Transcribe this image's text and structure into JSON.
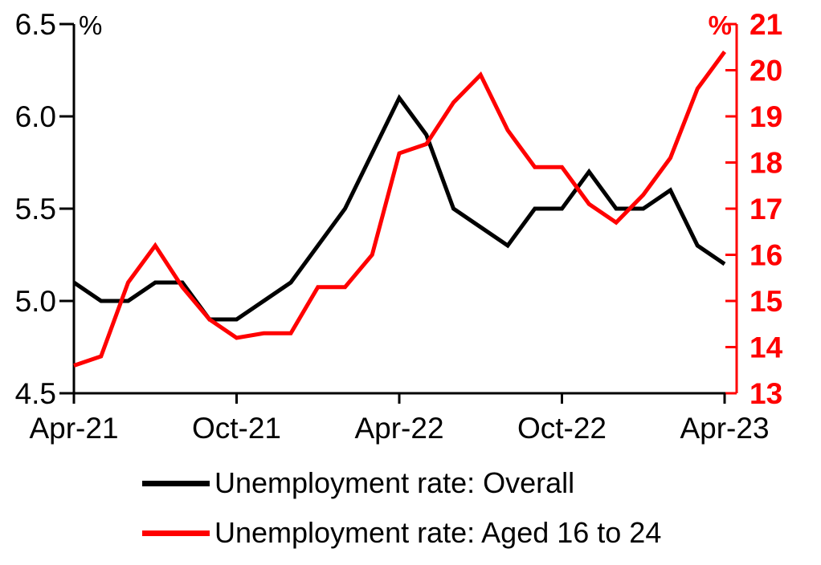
{
  "chart_data": {
    "type": "line",
    "title": "",
    "grid": false,
    "legend_position": "bottom-left",
    "background_color": "#ffffff",
    "x_categories": [
      "Apr-21",
      "May-21",
      "Jun-21",
      "Jul-21",
      "Aug-21",
      "Sep-21",
      "Oct-21",
      "Nov-21",
      "Dec-21",
      "Jan-22",
      "Feb-22",
      "Mar-22",
      "Apr-22",
      "May-22",
      "Jun-22",
      "Jul-22",
      "Aug-22",
      "Sep-22",
      "Oct-22",
      "Nov-22",
      "Dec-22",
      "Jan-23",
      "Feb-23",
      "Mar-23",
      "Apr-23"
    ],
    "x_tick_labels": [
      "Apr-21",
      "Oct-21",
      "Apr-22",
      "Oct-22",
      "Apr-23"
    ],
    "x_tick_indices": [
      0,
      6,
      12,
      18,
      24
    ],
    "left_axis": {
      "unit": "%",
      "min": 4.5,
      "max": 6.5,
      "step": 0.5,
      "tick_labels": [
        "4.5",
        "5.0",
        "5.5",
        "6.0",
        "6.5"
      ],
      "color": "#000000"
    },
    "right_axis": {
      "unit": "%",
      "min": 13,
      "max": 21,
      "step": 1,
      "tick_labels": [
        "13",
        "14",
        "15",
        "16",
        "17",
        "18",
        "19",
        "20",
        "21"
      ],
      "color": "#ff0000"
    },
    "series": [
      {
        "name": "Unemployment rate: Overall",
        "axis": "left",
        "color": "#000000",
        "values": [
          5.1,
          5.0,
          5.0,
          5.1,
          5.1,
          4.9,
          4.9,
          5.0,
          5.1,
          5.3,
          5.5,
          5.8,
          6.1,
          5.9,
          5.5,
          5.4,
          5.3,
          5.5,
          5.5,
          5.7,
          5.5,
          5.5,
          5.6,
          5.3,
          5.2
        ]
      },
      {
        "name": "Unemployment rate: Aged 16 to 24",
        "axis": "right",
        "color": "#ff0000",
        "values": [
          13.6,
          13.8,
          15.4,
          16.2,
          15.3,
          14.6,
          14.2,
          14.3,
          14.3,
          15.3,
          15.3,
          16.0,
          18.2,
          18.4,
          19.3,
          19.9,
          18.7,
          17.9,
          17.9,
          17.1,
          16.7,
          17.3,
          18.1,
          19.6,
          20.4
        ]
      }
    ]
  },
  "legend": {
    "items": [
      {
        "label": "Unemployment rate: Overall",
        "color": "#000000"
      },
      {
        "label": "Unemployment rate: Aged 16 to 24",
        "color": "#ff0000"
      }
    ]
  }
}
